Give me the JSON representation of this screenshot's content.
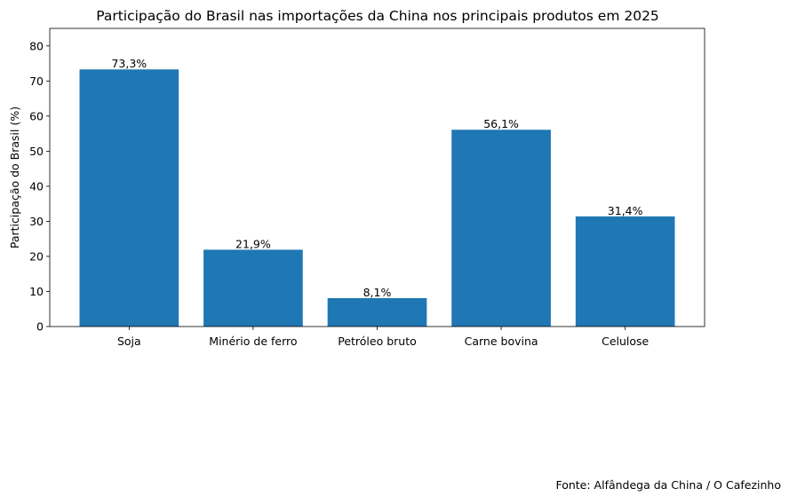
{
  "chart_data": {
    "type": "bar",
    "title": "Participação do Brasil nas importações da China nos principais produtos em 2025",
    "xlabel": "",
    "ylabel": "Participação do Brasil (%)",
    "categories": [
      "Soja",
      "Minério de ferro",
      "Petróleo bruto",
      "Carne bovina",
      "Celulose"
    ],
    "values": [
      73.3,
      21.9,
      8.1,
      56.1,
      31.4
    ],
    "data_labels": [
      "73,3%",
      "21,9%",
      "8,1%",
      "56,1%",
      "31,4%"
    ],
    "ylim": [
      0,
      85
    ],
    "yticks": [
      0,
      10,
      20,
      30,
      40,
      50,
      60,
      70,
      80
    ],
    "grid": false,
    "bar_color": "#1f77b4"
  },
  "footer": {
    "source": "Fonte: Alfândega da China / O Cafezinho"
  }
}
